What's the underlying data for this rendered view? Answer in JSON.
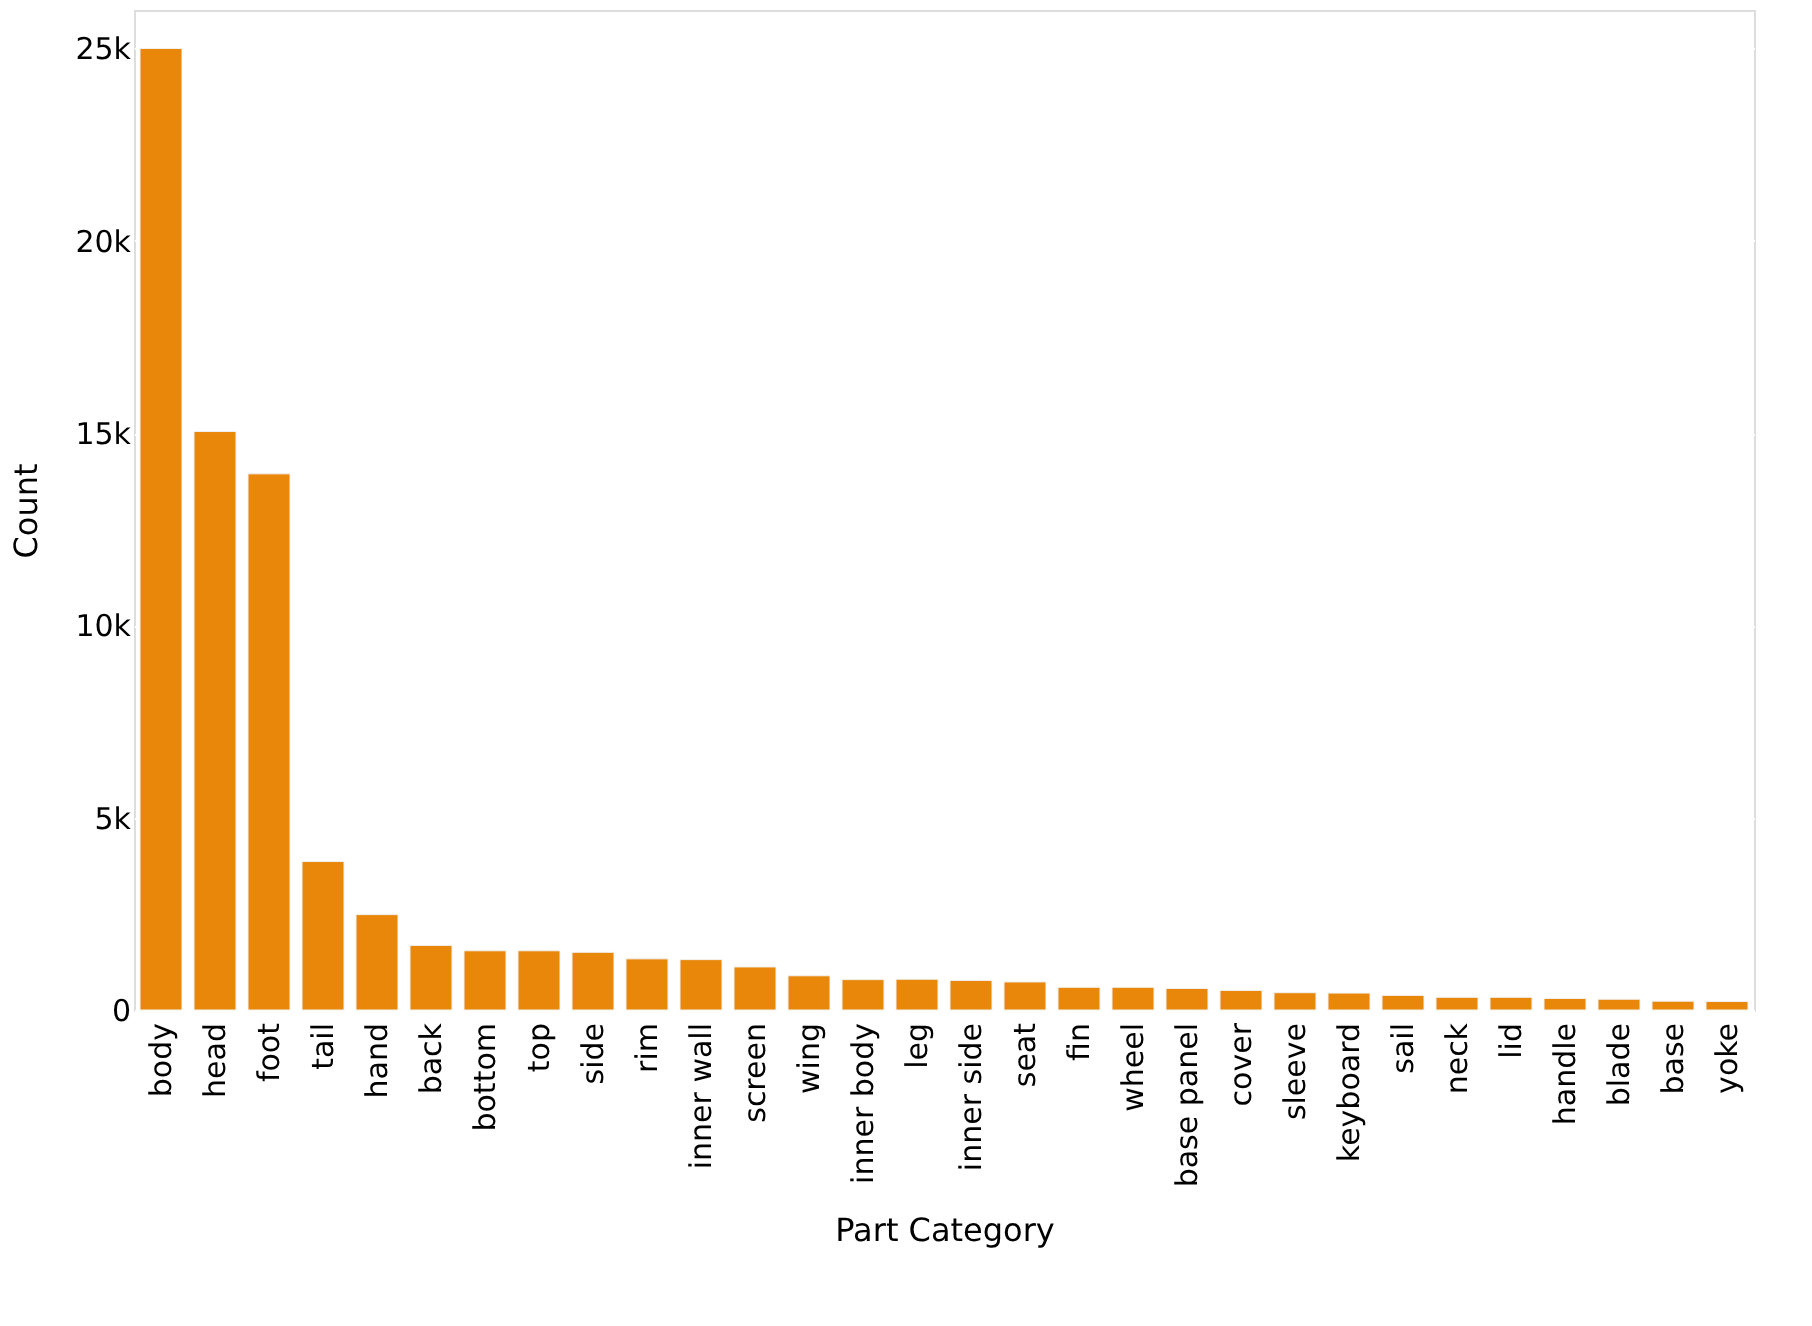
{
  "chart_data": {
    "type": "bar",
    "xlabel": "Part Category",
    "ylabel": "Count",
    "categories": [
      "body",
      "head",
      "foot",
      "tail",
      "hand",
      "back",
      "bottom",
      "top",
      "side",
      "rim",
      "inner wall",
      "screen",
      "wing",
      "inner body",
      "leg",
      "inner side",
      "seat",
      "fin",
      "wheel",
      "base panel",
      "cover",
      "sleeve",
      "keyboard",
      "sail",
      "neck",
      "lid",
      "handle",
      "blade",
      "base",
      "yoke"
    ],
    "values": [
      25000,
      15040,
      13940,
      3860,
      2480,
      1680,
      1540,
      1540,
      1500,
      1330,
      1310,
      1120,
      890,
      790,
      800,
      770,
      730,
      590,
      590,
      560,
      510,
      450,
      440,
      380,
      330,
      330,
      300,
      280,
      230,
      220
    ],
    "color": "#e8870a",
    "ylim": [
      0,
      26000
    ],
    "yticks": [
      {
        "value": 0,
        "label": "0"
      },
      {
        "value": 5000,
        "label": "5k"
      },
      {
        "value": 10000,
        "label": "10k"
      },
      {
        "value": 15000,
        "label": "15k"
      },
      {
        "value": 20000,
        "label": "20k"
      },
      {
        "value": 25000,
        "label": "25k"
      }
    ],
    "grid": "y"
  }
}
